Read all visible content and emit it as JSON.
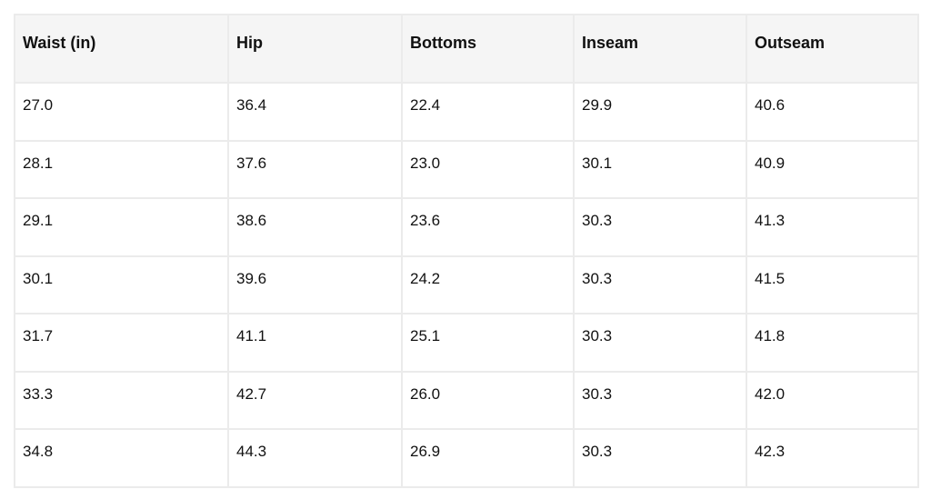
{
  "table": {
    "header": [
      "Waist (in)",
      "Hip",
      "Bottoms",
      "Inseam",
      "Outseam"
    ],
    "rows": [
      [
        "27.0",
        "36.4",
        "22.4",
        "29.9",
        "40.6"
      ],
      [
        "28.1",
        "37.6",
        "23.0",
        "30.1",
        "40.9"
      ],
      [
        "29.1",
        "38.6",
        "23.6",
        "30.3",
        "41.3"
      ],
      [
        "30.1",
        "39.6",
        "24.2",
        "30.3",
        "41.5"
      ],
      [
        "31.7",
        "41.1",
        "25.1",
        "30.3",
        "41.8"
      ],
      [
        "33.3",
        "42.7",
        "26.0",
        "30.3",
        "42.0"
      ],
      [
        "34.8",
        "44.3",
        "26.9",
        "30.3",
        "42.3"
      ]
    ]
  }
}
